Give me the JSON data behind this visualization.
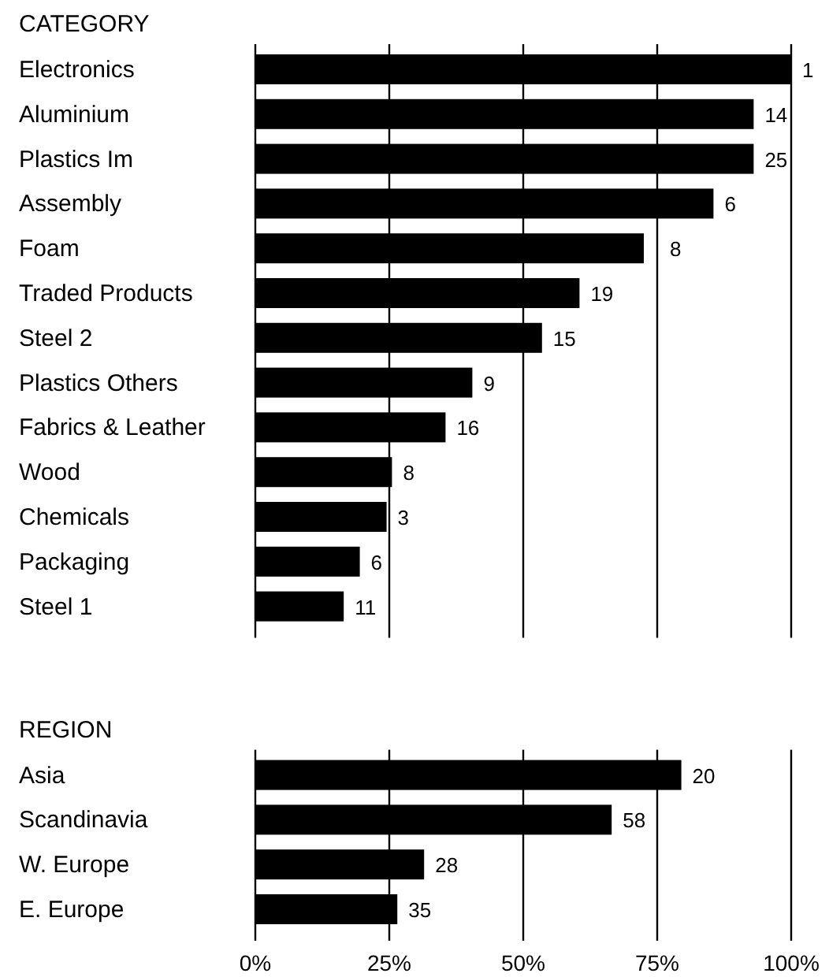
{
  "chart_data": [
    {
      "type": "bar",
      "orientation": "horizontal",
      "title": "CATEGORY",
      "categories": [
        "Electronics",
        "Aluminium",
        "Plastics Im",
        "Assembly",
        "Foam",
        "Traded Products",
        "Steel 2",
        "Plastics Others",
        "Fabrics & Leather",
        "Wood",
        "Chemicals",
        "Packaging",
        "Steel 1"
      ],
      "values": [
        100,
        93,
        93,
        85.5,
        72.5,
        60.5,
        53.5,
        40.5,
        35.5,
        25.5,
        24.5,
        19.5,
        16.5
      ],
      "annotations": [
        {
          "text": "1",
          "x": 100,
          "y": "Electronics"
        },
        {
          "text": "14",
          "x": 93,
          "y": "Aluminium"
        },
        {
          "text": "25",
          "x": 93,
          "y": "Plastics Im"
        },
        {
          "text": "6",
          "x": 85.5,
          "y": "Assembly"
        },
        {
          "text": "8",
          "x": 72.5,
          "y": "Foam"
        },
        {
          "text": "19",
          "x": 60.5,
          "y": "Traded Products"
        },
        {
          "text": "15",
          "x": 53.5,
          "y": "Steel 2"
        },
        {
          "text": "9",
          "x": 40.5,
          "y": "Plastics Others"
        },
        {
          "text": "16",
          "x": 35.5,
          "y": "Fabrics & Leather"
        },
        {
          "text": "8",
          "x": 25.5,
          "y": "Wood"
        },
        {
          "text": "3",
          "x": 24.5,
          "y": "Chemicals"
        },
        {
          "text": "6",
          "x": 19.5,
          "y": "Packaging"
        },
        {
          "text": "11",
          "x": 16.5,
          "y": "Steel 1"
        }
      ],
      "color": "#000000",
      "xlim": [
        0,
        100
      ],
      "xticks": [
        0,
        25,
        50,
        75,
        100
      ],
      "grid": "x",
      "tick_labels": "y"
    },
    {
      "type": "bar",
      "orientation": "horizontal",
      "title": "REGION",
      "categories": [
        "Asia",
        "Scandinavia",
        "W. Europe",
        "E. Europe"
      ],
      "values": [
        79.5,
        66.5,
        31.5,
        26.5
      ],
      "annotations": [
        {
          "text": "20",
          "x": 79.5,
          "y": "Asia"
        },
        {
          "text": "58",
          "x": 66.5,
          "y": "Scandinavia"
        },
        {
          "text": "28",
          "x": 31.5,
          "y": "W. Europe"
        },
        {
          "text": "35",
          "x": 26.5,
          "y": "E. Europe"
        }
      ],
      "color": "#000000",
      "xlim": [
        0,
        100
      ],
      "xticks": [
        {
          "value": 0,
          "label": "0%"
        },
        {
          "value": 25,
          "label": "25%"
        },
        {
          "value": 50,
          "label": "50%"
        },
        {
          "value": 75,
          "label": "75%"
        },
        {
          "value": 100,
          "label": "100%"
        }
      ],
      "grid": "x"
    }
  ]
}
